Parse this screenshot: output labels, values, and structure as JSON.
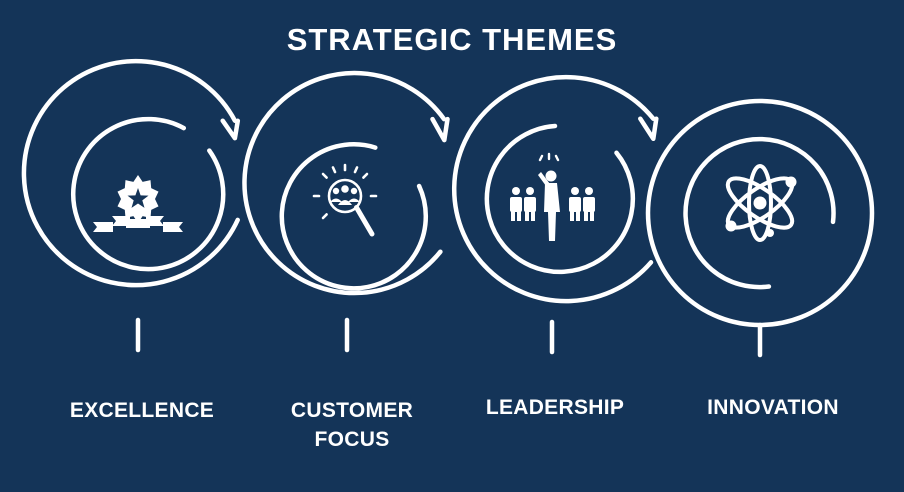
{
  "title": "STRATEGIC THEMES",
  "themes": [
    {
      "label": "EXCELLENCE",
      "icon": "award-badge-icon"
    },
    {
      "label": "CUSTOMER\nFOCUS",
      "icon": "magnifier-people-icon"
    },
    {
      "label": "LEADERSHIP",
      "icon": "leader-people-icon"
    },
    {
      "label": "INNOVATION",
      "icon": "atom-icon"
    }
  ],
  "colors": {
    "background": "#143458",
    "foreground": "#ffffff"
  }
}
